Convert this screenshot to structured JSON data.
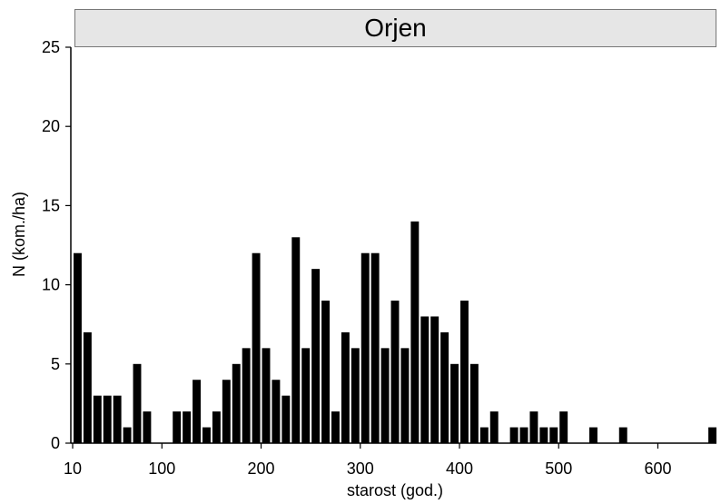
{
  "chart_data": {
    "type": "bar",
    "title": "Orjen",
    "xlabel": "starost (god.)",
    "ylabel": "N (kom./ha)",
    "xlim": [
      10,
      660
    ],
    "ylim": [
      0,
      25
    ],
    "bin_width": 10,
    "xticks": [
      10,
      100,
      200,
      300,
      400,
      500,
      600
    ],
    "xtick_labels": [
      "10",
      "100",
      "200",
      "300",
      "400",
      "500",
      "600"
    ],
    "yticks": [
      0,
      5,
      10,
      15,
      20,
      25
    ],
    "ytick_labels": [
      "0",
      "5",
      "10",
      "15",
      "20",
      "25"
    ],
    "grid": false,
    "bar_color": "#000000",
    "x": [
      10,
      20,
      30,
      40,
      50,
      60,
      70,
      80,
      90,
      100,
      110,
      120,
      130,
      140,
      150,
      160,
      170,
      180,
      190,
      200,
      210,
      220,
      230,
      240,
      250,
      260,
      270,
      280,
      290,
      300,
      310,
      320,
      330,
      340,
      350,
      360,
      370,
      380,
      390,
      400,
      410,
      420,
      430,
      440,
      450,
      460,
      470,
      480,
      490,
      500,
      510,
      520,
      530,
      540,
      550,
      560,
      570,
      580,
      590,
      600,
      610,
      620,
      630,
      640,
      650
    ],
    "values": [
      12,
      7,
      3,
      3,
      3,
      1,
      5,
      2,
      0,
      0,
      2,
      2,
      4,
      1,
      2,
      4,
      5,
      6,
      12,
      6,
      4,
      3,
      13,
      6,
      11,
      9,
      2,
      7,
      6,
      12,
      12,
      6,
      9,
      6,
      14,
      8,
      8,
      7,
      5,
      9,
      5,
      1,
      2,
      0,
      1,
      1,
      2,
      1,
      1,
      2,
      0,
      0,
      1,
      0,
      0,
      1,
      0,
      0,
      0,
      0,
      0,
      0,
      0,
      0,
      1
    ]
  }
}
